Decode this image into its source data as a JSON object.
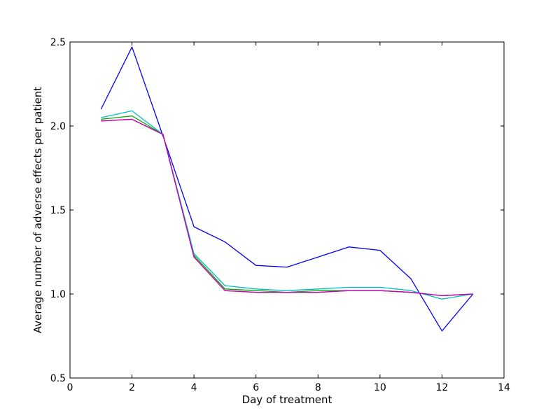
{
  "chart_data": {
    "type": "line",
    "title": "",
    "xlabel": "Day of treatment",
    "ylabel": "Average number of adverse effects per patient",
    "xlim": [
      0,
      14
    ],
    "ylim": [
      0.5,
      2.5
    ],
    "xticks": [
      0,
      2,
      4,
      6,
      8,
      10,
      12,
      14
    ],
    "xtick_labels": [
      "0",
      "2",
      "4",
      "6",
      "8",
      "10",
      "12",
      "14"
    ],
    "yticks": [
      0.5,
      1.0,
      1.5,
      2.0,
      2.5
    ],
    "ytick_labels": [
      "0.5",
      "1.0",
      "1.5",
      "2.0",
      "2.5"
    ],
    "grid": false,
    "x": [
      1,
      2,
      3,
      4,
      5,
      6,
      7,
      8,
      9,
      10,
      11,
      12,
      13
    ],
    "series": [
      {
        "color": "#0000ff",
        "values": [
          2.1,
          2.47,
          1.94,
          1.4,
          1.31,
          1.17,
          1.16,
          1.22,
          1.28,
          1.26,
          1.09,
          0.78,
          1.0
        ]
      },
      {
        "color": "#00aa00",
        "values": [
          2.04,
          2.06,
          1.95,
          1.23,
          1.03,
          1.02,
          1.01,
          1.02,
          1.02,
          1.02,
          1.01,
          0.99,
          1.0
        ]
      },
      {
        "color": "#00bfbf",
        "values": [
          2.05,
          2.09,
          1.95,
          1.24,
          1.05,
          1.03,
          1.02,
          1.03,
          1.04,
          1.04,
          1.02,
          0.97,
          1.0
        ]
      },
      {
        "color": "#ff0000",
        "values": [
          2.03,
          2.04,
          1.95,
          1.22,
          1.02,
          1.01,
          1.01,
          1.01,
          1.02,
          1.02,
          1.01,
          0.99,
          1.0
        ]
      },
      {
        "color": "#bf00bf",
        "values": [
          2.03,
          2.04,
          1.95,
          1.22,
          1.02,
          1.01,
          1.01,
          1.01,
          1.02,
          1.02,
          1.01,
          0.99,
          1.0
        ]
      }
    ]
  }
}
